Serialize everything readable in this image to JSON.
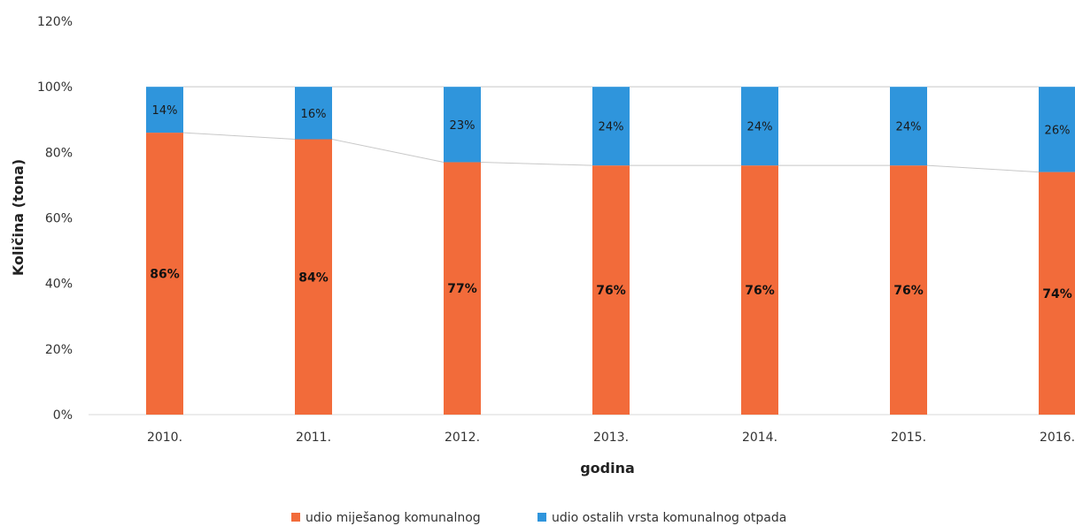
{
  "chart_data": {
    "type": "bar",
    "stacked": true,
    "categories": [
      "2010.",
      "2011.",
      "2012.",
      "2013.",
      "2014.",
      "2015.",
      "2016."
    ],
    "series": [
      {
        "name": "udio miješanog komunalnog",
        "values": [
          86,
          84,
          77,
          76,
          76,
          76,
          74
        ],
        "labels": [
          "86%",
          "84%",
          "77%",
          "76%",
          "76%",
          "76%",
          "74%"
        ],
        "color": "#f26b3a"
      },
      {
        "name": "udio ostalih vrsta komunalnog otpada",
        "values": [
          14,
          16,
          23,
          24,
          24,
          24,
          26
        ],
        "labels": [
          "14%",
          "16%",
          "23%",
          "24%",
          "24%",
          "24%",
          "26%"
        ],
        "color": "#2f95dc"
      }
    ],
    "xlabel": "godina",
    "ylabel": "Količina (tona)",
    "ylim": [
      0,
      120
    ],
    "yticks": [
      "0%",
      "20%",
      "40%",
      "60%",
      "80%",
      "100%",
      "120%"
    ],
    "ytick_values": [
      0,
      20,
      40,
      60,
      80,
      100,
      120
    ],
    "grid": false,
    "legend_position": "bottom",
    "series_lines": true
  }
}
